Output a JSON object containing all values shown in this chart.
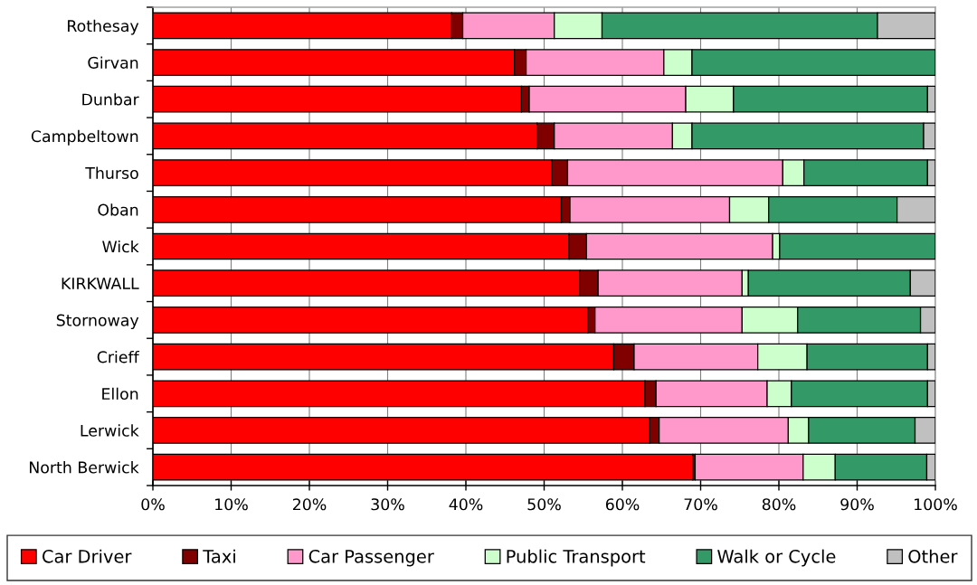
{
  "chart_data": {
    "type": "bar",
    "orientation": "horizontal",
    "stacked": true,
    "categories": [
      "Rothesay",
      "Girvan",
      "Dunbar",
      "Campbeltown",
      "Thurso",
      "Oban",
      "Wick",
      "KIRKWALL",
      "Stornoway",
      "Crieff",
      "Ellon",
      "Lerwick",
      "North Berwick"
    ],
    "series": [
      {
        "name": "Car Driver",
        "color": "#ff0000",
        "values": [
          38.2,
          46.2,
          47.1,
          49.1,
          51.0,
          52.2,
          53.2,
          54.6,
          55.6,
          58.9,
          62.9,
          63.5,
          69.0
        ]
      },
      {
        "name": "Taxi",
        "color": "#800000",
        "values": [
          1.4,
          1.5,
          1.0,
          2.2,
          2.0,
          1.1,
          2.2,
          2.3,
          0.9,
          2.6,
          1.4,
          1.2,
          0.3
        ]
      },
      {
        "name": "Car Passenger",
        "color": "#ff99cc",
        "values": [
          11.7,
          17.6,
          20.0,
          15.1,
          27.5,
          20.4,
          23.8,
          18.4,
          18.8,
          15.8,
          14.2,
          16.5,
          13.8
        ]
      },
      {
        "name": "Public Transport",
        "color": "#ccffcc",
        "values": [
          6.1,
          3.6,
          6.1,
          2.5,
          2.7,
          5.0,
          0.9,
          0.8,
          7.1,
          6.3,
          3.1,
          2.6,
          4.1
        ]
      },
      {
        "name": "Walk or Cycle",
        "color": "#339966",
        "values": [
          35.2,
          31.1,
          24.8,
          29.6,
          15.8,
          16.4,
          19.9,
          20.7,
          15.7,
          15.4,
          17.4,
          13.6,
          11.7
        ]
      },
      {
        "name": "Other",
        "color": "#c0c0c0",
        "values": [
          7.4,
          null,
          1.0,
          1.5,
          1.0,
          4.9,
          null,
          3.2,
          1.9,
          1.0,
          1.0,
          2.6,
          1.1
        ]
      }
    ],
    "xlim": [
      0,
      100
    ],
    "xticks": [
      {
        "value": 0,
        "label": "0%"
      },
      {
        "value": 10,
        "label": "10%"
      },
      {
        "value": 20,
        "label": "20%"
      },
      {
        "value": 30,
        "label": "30%"
      },
      {
        "value": 40,
        "label": "40%"
      },
      {
        "value": 50,
        "label": "50%"
      },
      {
        "value": 60,
        "label": "60%"
      },
      {
        "value": 70,
        "label": "70%"
      },
      {
        "value": 80,
        "label": "80%"
      },
      {
        "value": 90,
        "label": "90%"
      },
      {
        "value": 100,
        "label": "100%"
      }
    ],
    "grid": "x",
    "legend": "bottom"
  }
}
